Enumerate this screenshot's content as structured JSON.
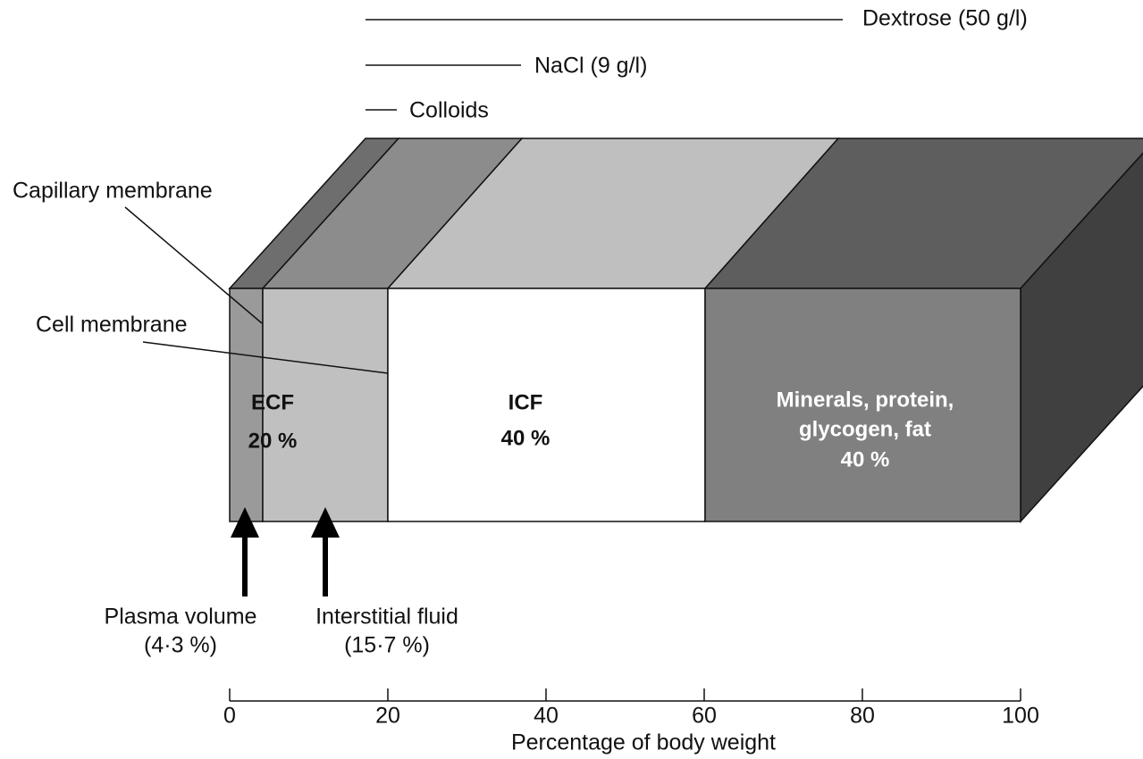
{
  "top_labels": {
    "dextrose": "Dextrose (50 g/l)",
    "nacl": "NaCl (9 g/l)",
    "colloids": "Colloids"
  },
  "membranes": {
    "capillary": "Capillary membrane",
    "cell": "Cell membrane"
  },
  "compartments": {
    "ecf": {
      "name": "ECF",
      "percent": "20 %"
    },
    "icf": {
      "name": "ICF",
      "percent": "40 %"
    },
    "solids": {
      "lines": [
        "Minerals, protein,",
        "glycogen, fat",
        "40 %"
      ]
    }
  },
  "arrows": {
    "plasma": {
      "label": "Plasma volume",
      "percent": "(4·3 %)"
    },
    "interstitial": {
      "label": "Interstitial fluid",
      "percent": "(15·7 %)"
    }
  },
  "axis": {
    "ticks": [
      0,
      20,
      40,
      60,
      80,
      100
    ],
    "label": "Percentage of body weight"
  }
}
